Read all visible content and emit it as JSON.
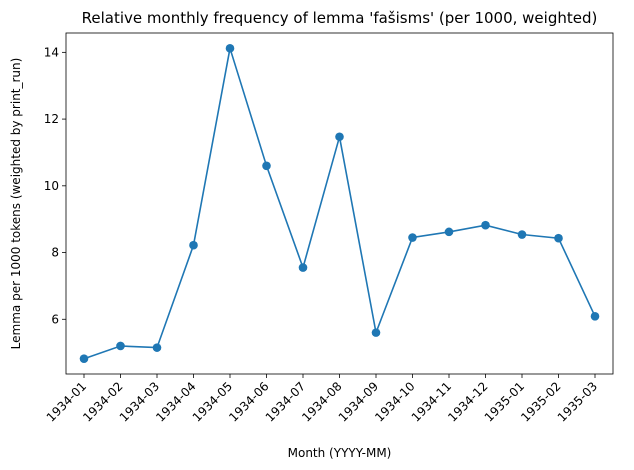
{
  "chart_data": {
    "type": "line",
    "title": "Relative monthly frequency of lemma 'fašisms' (per 1000, weighted)",
    "xlabel": "Month (YYYY-MM)",
    "ylabel": "Lemma per 1000 tokens (weighted by print_run)",
    "categories": [
      "1934-01",
      "1934-02",
      "1934-03",
      "1934-04",
      "1934-05",
      "1934-06",
      "1934-07",
      "1934-08",
      "1934-09",
      "1934-10",
      "1934-11",
      "1934-12",
      "1935-01",
      "1935-02",
      "1935-03"
    ],
    "values": [
      4.82,
      5.2,
      5.15,
      8.22,
      14.12,
      10.6,
      7.55,
      11.47,
      5.6,
      8.45,
      8.62,
      8.82,
      8.54,
      8.43,
      6.09
    ],
    "yticks": [
      6,
      8,
      10,
      12,
      14
    ],
    "ylim": [
      4.36,
      14.58
    ],
    "grid": false,
    "color": "#1f77b4"
  }
}
